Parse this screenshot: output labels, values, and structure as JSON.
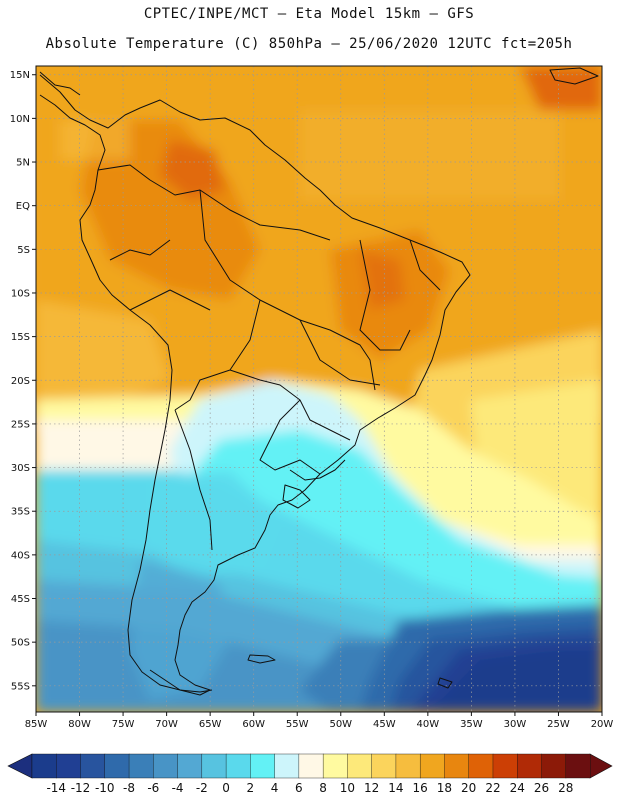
{
  "header": {
    "line1": "CPTEC/INPE/MCT –  Eta Model 15km – GFS",
    "line2": "Absolute Temperature (C) 850hPa – 25/06/2020 12UTC fct=205h"
  },
  "map": {
    "lon_range": [
      -85,
      -20
    ],
    "lat_range": [
      -58,
      16
    ],
    "lat_ticks": [
      "15N",
      "10N",
      "5N",
      "EQ",
      "5S",
      "10S",
      "15S",
      "20S",
      "25S",
      "30S",
      "35S",
      "40S",
      "45S",
      "50S",
      "55S"
    ],
    "lon_ticks": [
      "85W",
      "80W",
      "75W",
      "70W",
      "65W",
      "60W",
      "55W",
      "50W",
      "45W",
      "40W",
      "35W",
      "30W",
      "25W",
      "20W"
    ],
    "gridlines": "dotted"
  },
  "colorbar": {
    "labels": [
      "-14",
      "-12",
      "-10",
      "-8",
      "-6",
      "-4",
      "-2",
      "0",
      "2",
      "4",
      "6",
      "8",
      "10",
      "12",
      "14",
      "16",
      "18",
      "20",
      "22",
      "24",
      "26",
      "28"
    ],
    "colors": [
      "#1b3c8c",
      "#203f93",
      "#28549e",
      "#2f6aab",
      "#3a7fb8",
      "#4894c6",
      "#53a8d3",
      "#57c3e0",
      "#5ad9ec",
      "#63f1f5",
      "#cdf5fb",
      "#fff8e6",
      "#fffaa0",
      "#fde97a",
      "#fbd45c",
      "#f6bd3e",
      "#f0a61f",
      "#e8860f",
      "#df6206",
      "#cc3f05",
      "#b02a06",
      "#8c1a08",
      "#6b0f10"
    ],
    "under_color": "#1c2f7e",
    "over_color": "#6b0f10"
  }
}
